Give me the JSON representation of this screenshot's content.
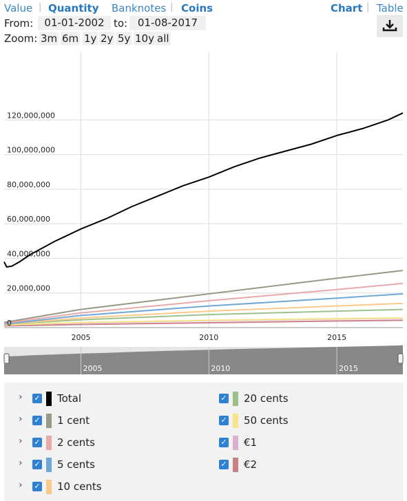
{
  "topbar": {
    "value_label": "Value",
    "quantity_label": "Quantity",
    "banknotes_label": "Banknotes",
    "coins_label": "Coins",
    "chart_label": "Chart",
    "table_label": "Table"
  },
  "date_range": {
    "from_label": "From:",
    "from_value": "01-01-2002",
    "to_label": "to:",
    "to_value": "01-08-2017"
  },
  "zoom": {
    "label": "Zoom:",
    "options": [
      "3m",
      "6m",
      "1y",
      "2y",
      "5y",
      "10y",
      "all"
    ]
  },
  "download_icon": "download-icon",
  "legend": {
    "left": [
      {
        "label": "Total",
        "color": "#000000"
      },
      {
        "label": "1 cent",
        "color": "#999988"
      },
      {
        "label": "2 cents",
        "color": "#e8a9a9"
      },
      {
        "label": "5 cents",
        "color": "#6fa8d6"
      },
      {
        "label": "10 cents",
        "color": "#fbc98a"
      }
    ],
    "right": [
      {
        "label": "20 cents",
        "color": "#9cc18a"
      },
      {
        "label": "50 cents",
        "color": "#f7e58c"
      },
      {
        "label": "€1",
        "color": "#d9b1cc"
      },
      {
        "label": "€2",
        "color": "#c98088"
      }
    ]
  },
  "chart_data": {
    "type": "line",
    "x_range": [
      2002.0,
      2017.58
    ],
    "ylim": [
      0,
      140000000
    ],
    "y_ticks": [
      0,
      20000000,
      40000000,
      60000000,
      80000000,
      100000000,
      120000000
    ],
    "y_tick_labels": [
      "0",
      "20,000,000",
      "40,000,000",
      "60,000,000",
      "80,000,000",
      "100,000,000",
      "120,000,000"
    ],
    "x_ticks": [
      2005,
      2010,
      2015
    ],
    "x_tick_labels": [
      "2005",
      "2010",
      "2015"
    ],
    "series": [
      {
        "name": "Total",
        "color": "#000000",
        "width": 2,
        "x": [
          2002.0,
          2002.1,
          2002.3,
          2002.6,
          2003,
          2004,
          2005,
          2006,
          2007,
          2008,
          2009,
          2010,
          2011,
          2012,
          2013,
          2014,
          2015,
          2016,
          2017,
          2017.58
        ],
        "y": [
          38000000,
          35000000,
          35500000,
          38000000,
          42000000,
          50000000,
          57000000,
          63000000,
          70000000,
          76000000,
          82000000,
          87000000,
          93000000,
          98000000,
          102000000,
          106000000,
          111000000,
          115000000,
          120000000,
          124000000
        ]
      },
      {
        "name": "1 cent",
        "color": "#999988",
        "width": 2,
        "x": [
          2002,
          2005,
          2010,
          2015,
          2017.58
        ],
        "y": [
          3000000,
          10500000,
          19500000,
          28500000,
          33000000
        ]
      },
      {
        "name": "2 cents",
        "color": "#e8a9a9",
        "width": 2,
        "x": [
          2002,
          2005,
          2010,
          2015,
          2017.58
        ],
        "y": [
          2500000,
          8500000,
          15500000,
          22000000,
          25500000
        ]
      },
      {
        "name": "5 cents",
        "color": "#6fa8d6",
        "width": 2,
        "x": [
          2002,
          2005,
          2010,
          2015,
          2017.58
        ],
        "y": [
          2000000,
          7000000,
          12500000,
          17000000,
          19500000
        ]
      },
      {
        "name": "10 cents",
        "color": "#fbc98a",
        "width": 2,
        "x": [
          2002,
          2005,
          2010,
          2015,
          2017.58
        ],
        "y": [
          2000000,
          5500000,
          9500000,
          12500000,
          14000000
        ]
      },
      {
        "name": "20 cents",
        "color": "#9cc18a",
        "width": 2,
        "x": [
          2002,
          2005,
          2010,
          2015,
          2017.58
        ],
        "y": [
          2000000,
          4500000,
          7500000,
          9500000,
          10500000
        ]
      },
      {
        "name": "50 cents",
        "color": "#f7e58c",
        "width": 2,
        "x": [
          2002,
          2005,
          2010,
          2015,
          2017.58
        ],
        "y": [
          1500000,
          3000000,
          4200000,
          5200000,
          5600000
        ]
      },
      {
        "name": "€1",
        "color": "#d9b1cc",
        "width": 2,
        "x": [
          2002,
          2005,
          2010,
          2015,
          2017.58
        ],
        "y": [
          1500000,
          2800000,
          4000000,
          5000000,
          5400000
        ]
      },
      {
        "name": "€2",
        "color": "#c98088",
        "width": 2,
        "x": [
          2002,
          2005,
          2010,
          2015,
          2017.58
        ],
        "y": [
          1000000,
          1800000,
          2800000,
          3800000,
          4200000
        ]
      }
    ],
    "navigator": {
      "x_ticks": [
        2005,
        2010,
        2015
      ],
      "x_tick_labels": [
        "2005",
        "2010",
        "2015"
      ]
    }
  }
}
